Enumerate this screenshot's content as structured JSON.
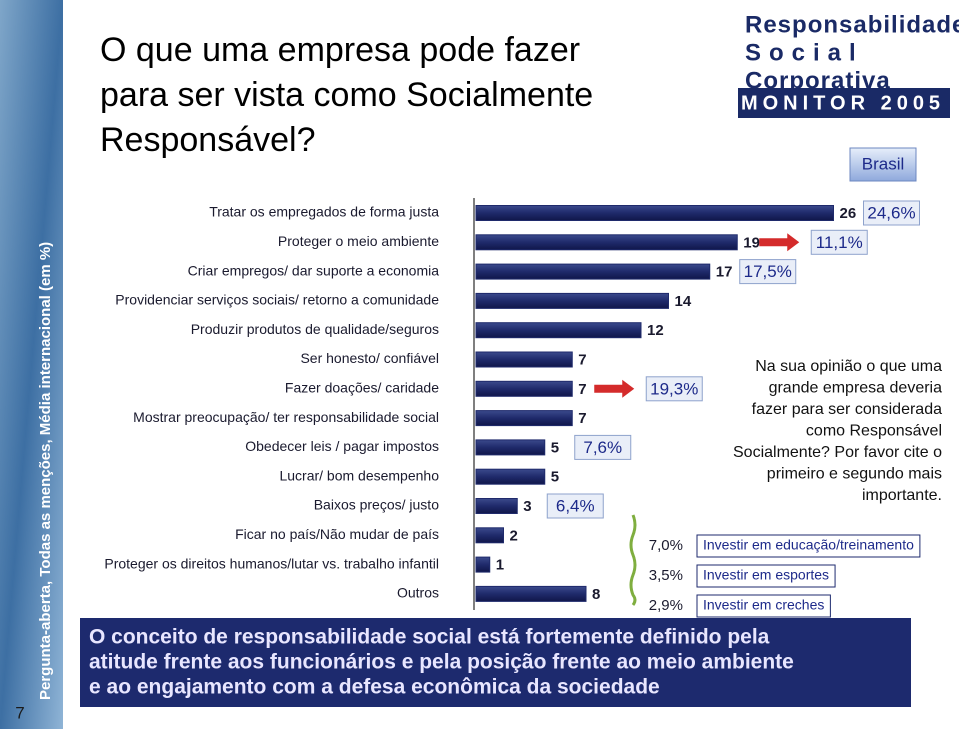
{
  "sidebar": {
    "text": "Pergunta-aberta, Todas as menções, Média internacional (em %)",
    "page_number": "7"
  },
  "logo": {
    "lines": [
      "Responsabilidade",
      "Social",
      "Corporativa"
    ],
    "banner": "MONITOR 2005"
  },
  "title_lines": [
    "O que uma empresa pode fazer",
    "para ser vista como Socialmente",
    "Responsável?"
  ],
  "chart_data": {
    "type": "bar",
    "orientation": "horizontal",
    "color": "#1f2a6b",
    "categories": [
      "Tratar os empregados de forma justa",
      "Proteger o meio ambiente",
      "Criar empregos/ dar suporte a economia",
      "Providenciar serviços sociais/ retorno a comunidade",
      "Produzir produtos de qualidade/seguros",
      "Ser honesto/ confiável",
      "Fazer doações/ caridade",
      "Mostrar preocupação/ ter responsabilidade social",
      "Obedecer leis / pagar impostos",
      "Lucrar/ bom desempenho",
      "Baixos preços/ justo",
      "Ficar no país/Não mudar de país",
      "Proteger os direitos humanos/lutar vs. trabalho infantil",
      "Outros"
    ],
    "values": [
      26,
      19,
      17,
      14,
      12,
      7,
      7,
      7,
      5,
      5,
      3,
      2,
      1,
      8
    ],
    "comparison": {
      "name": "Brasil",
      "values": [
        24.6,
        11.1,
        17.5,
        null,
        null,
        null,
        19.3,
        null,
        7.6,
        null,
        6.4,
        null,
        null,
        null
      ],
      "value_labels": [
        "24,6%",
        "11,1%",
        "17,5%",
        null,
        null,
        null,
        "19,3%",
        null,
        "7,6%",
        null,
        "6,4%",
        null,
        null,
        null
      ]
    }
  },
  "question_lines": [
    "Na sua opinião o que uma",
    "grande empresa deveria",
    "fazer para ser considerada",
    "como Responsável",
    "Socialmente? Por favor cite o",
    "primeiro e segundo mais",
    "importante."
  ],
  "details": [
    {
      "value": 7,
      "value_label": "7,0%",
      "label": "Investir em educação/treinamento"
    },
    {
      "value": 3.5,
      "value_label": "3,5%",
      "label": "Investir em esportes"
    },
    {
      "value": 2.9,
      "value_label": "2,9%",
      "label": "Investir em creches"
    }
  ],
  "summary_lines": [
    "O conceito de responsabilidade social está fortemente definido pela",
    "atitude frente aos funcionários e pela posição frente ao meio ambiente",
    "e ao engajamento com a defesa econômica da sociedade"
  ]
}
